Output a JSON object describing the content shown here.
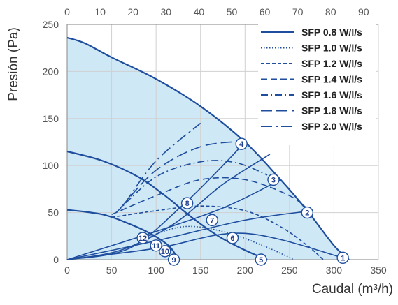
{
  "chart_data": {
    "type": "line",
    "xlabel": "Caudal (m³/h)",
    "ylabel": "Presión (Pa)",
    "xlim": [
      0,
      350
    ],
    "ylim": [
      0,
      250
    ],
    "x_ticks": [
      0,
      50,
      100,
      150,
      200,
      250,
      300,
      350
    ],
    "y_ticks": [
      0,
      50,
      100,
      150,
      200,
      250
    ],
    "top_axis": {
      "xlim": [
        0,
        94.5
      ],
      "ticks": [
        0,
        10,
        20,
        30,
        40,
        50,
        60,
        70,
        80,
        90
      ]
    },
    "grid": true,
    "legend_position": "top-right",
    "colors": {
      "line": "#1f4e9e",
      "fill": "#cfe8f6",
      "grid": "#d0d0d0",
      "axis": "#9a9a9a"
    },
    "fan_curves": [
      {
        "id": "max",
        "points": [
          [
            0,
            236
          ],
          [
            20,
            230
          ],
          [
            50,
            215
          ],
          [
            100,
            192
          ],
          [
            150,
            163
          ],
          [
            200,
            125
          ],
          [
            240,
            85
          ],
          [
            270,
            52
          ],
          [
            300,
            15
          ],
          [
            317,
            0
          ]
        ]
      },
      {
        "id": "mid",
        "points": [
          [
            0,
            115
          ],
          [
            40,
            105
          ],
          [
            80,
            88
          ],
          [
            110,
            68
          ],
          [
            140,
            45
          ],
          [
            170,
            25
          ],
          [
            200,
            10
          ],
          [
            225,
            0
          ]
        ]
      },
      {
        "id": "low",
        "points": [
          [
            0,
            53
          ],
          [
            40,
            48
          ],
          [
            70,
            38
          ],
          [
            95,
            27
          ],
          [
            115,
            14
          ],
          [
            125,
            0
          ]
        ]
      }
    ],
    "series": [
      {
        "name": "SFP 0.8 W/l/s",
        "dash": "solid",
        "points": [
          [
            0,
            0
          ],
          [
            100,
            12
          ],
          [
            200,
            28
          ],
          [
            317,
            0
          ]
        ]
      },
      {
        "name": "SFP 1.0 W/l/s",
        "dash": "dotted",
        "points": [
          [
            85,
            22
          ],
          [
            130,
            35
          ],
          [
            175,
            30
          ],
          [
            220,
            15
          ],
          [
            255,
            0
          ]
        ]
      },
      {
        "name": "SFP 1.2 W/l/s",
        "dash": "short-dash",
        "points": [
          [
            50,
            45
          ],
          [
            100,
            52
          ],
          [
            150,
            57
          ],
          [
            200,
            52
          ],
          [
            240,
            35
          ],
          [
            270,
            15
          ],
          [
            288,
            0
          ]
        ]
      },
      {
        "name": "SFP 1.4 W/l/s",
        "dash": "dash",
        "points": [
          [
            50,
            48
          ],
          [
            100,
            68
          ],
          [
            150,
            85
          ],
          [
            200,
            85
          ],
          [
            250,
            68
          ],
          [
            275,
            50
          ]
        ]
      },
      {
        "name": "SFP 1.6 W/l/s",
        "dash": "dash-dot",
        "points": [
          [
            55,
            50
          ],
          [
            100,
            88
          ],
          [
            150,
            104
          ],
          [
            190,
            103
          ],
          [
            225,
            90
          ]
        ]
      },
      {
        "name": "SFP 1.8 W/l/s",
        "dash": "long-dash",
        "points": [
          [
            60,
            55
          ],
          [
            100,
            95
          ],
          [
            150,
            120
          ],
          [
            200,
            126
          ]
        ]
      },
      {
        "name": "SFP 2.0 W/l/s",
        "dash": "long-dash-dot",
        "points": [
          [
            65,
            60
          ],
          [
            100,
            105
          ],
          [
            150,
            145
          ]
        ]
      }
    ],
    "system_curves": [
      {
        "id": "A",
        "points": [
          [
            0,
            0
          ],
          [
            100,
            20
          ],
          [
            200,
            42
          ],
          [
            275,
            52
          ]
        ]
      },
      {
        "id": "B",
        "points": [
          [
            0,
            0
          ],
          [
            100,
            30
          ],
          [
            178,
            56
          ],
          [
            240,
            85
          ]
        ]
      },
      {
        "id": "C",
        "points": [
          [
            0,
            0
          ],
          [
            60,
            10
          ],
          [
            120,
            38
          ],
          [
            175,
            80
          ],
          [
            228,
            112
          ]
        ]
      },
      {
        "id": "D",
        "points": [
          [
            0,
            0
          ],
          [
            70,
            12
          ],
          [
            130,
            58
          ],
          [
            175,
            100
          ],
          [
            200,
            125
          ]
        ]
      }
    ],
    "operating_points": [
      {
        "label": "1",
        "x": 310,
        "y": 2
      },
      {
        "label": "2",
        "x": 270,
        "y": 50
      },
      {
        "label": "3",
        "x": 232,
        "y": 85
      },
      {
        "label": "4",
        "x": 196,
        "y": 123
      },
      {
        "label": "5",
        "x": 218,
        "y": 0
      },
      {
        "label": "6",
        "x": 186,
        "y": 23
      },
      {
        "label": "7",
        "x": 163,
        "y": 42
      },
      {
        "label": "8",
        "x": 135,
        "y": 60
      },
      {
        "label": "9",
        "x": 120,
        "y": 0
      },
      {
        "label": "10",
        "x": 110,
        "y": 9
      },
      {
        "label": "11",
        "x": 100,
        "y": 15
      },
      {
        "label": "12",
        "x": 85,
        "y": 23
      }
    ]
  }
}
